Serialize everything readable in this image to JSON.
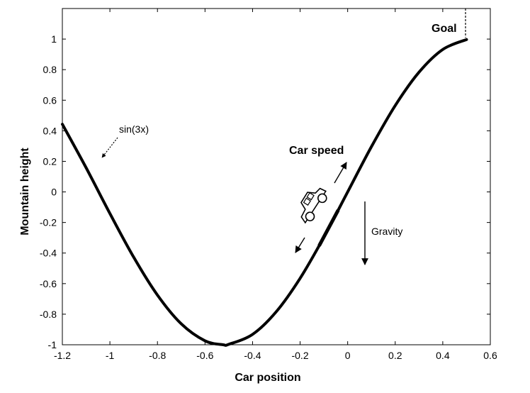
{
  "chart_data": {
    "type": "line",
    "title": "",
    "xlabel": "Car position",
    "ylabel": "Mountain height",
    "xlim": [
      -1.2,
      0.6
    ],
    "ylim": [
      -1,
      1.2
    ],
    "x_ticks": [
      -1.2,
      -1,
      -0.8,
      -0.6,
      -0.4,
      -0.2,
      0,
      0.2,
      0.4,
      0.6
    ],
    "x_tick_labels": [
      "-1.2",
      "-1",
      "-0.8",
      "-0.6",
      "-0.4",
      "-0.2",
      "0",
      "0.2",
      "0.4",
      "0.6"
    ],
    "y_ticks": [
      -1,
      -0.8,
      -0.6,
      -0.4,
      -0.2,
      0,
      0.2,
      0.4,
      0.6,
      0.8,
      1
    ],
    "y_tick_labels": [
      "-1",
      "-0.8",
      "-0.6",
      "-0.4",
      "-0.2",
      "0",
      "0.2",
      "0.4",
      "0.6",
      "0.8",
      "1"
    ],
    "grid": false,
    "series": [
      {
        "function": "sin(3x)",
        "x": [
          -1.2,
          -1.1,
          -1.0,
          -0.9,
          -0.8,
          -0.7,
          -0.6,
          -0.5236,
          -0.5,
          -0.4,
          -0.3,
          -0.2,
          -0.1,
          0.0,
          0.1,
          0.2,
          0.3,
          0.4,
          0.5
        ],
        "y": [
          0.443,
          0.158,
          -0.141,
          -0.427,
          -0.675,
          -0.863,
          -0.974,
          -1.0,
          -0.997,
          -0.932,
          -0.783,
          -0.565,
          -0.296,
          0.0,
          0.296,
          0.565,
          0.783,
          0.932,
          0.997
        ]
      }
    ],
    "annotations": {
      "curve_label": "sin(3x)",
      "goal_label": "Goal",
      "goal_x": 0.5,
      "speed_label": "Car speed",
      "gravity_label": "Gravity"
    }
  }
}
